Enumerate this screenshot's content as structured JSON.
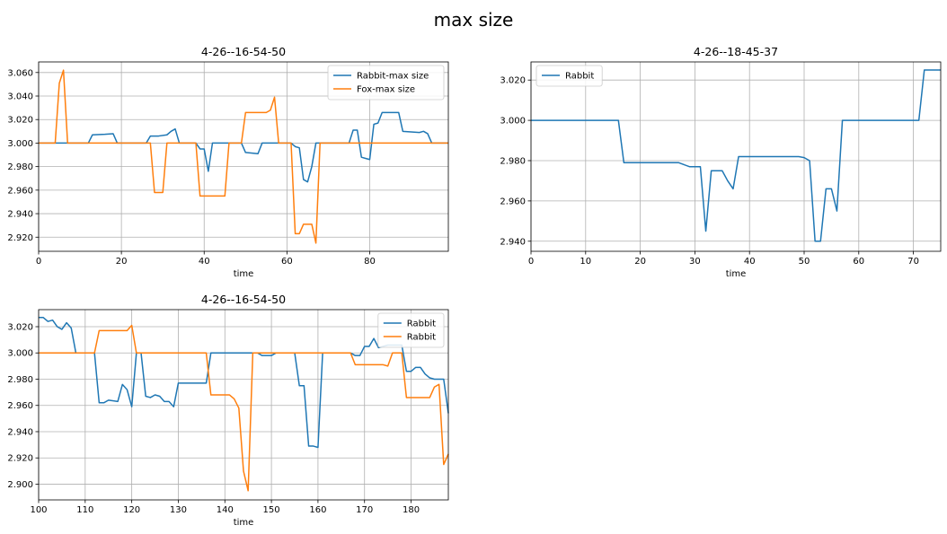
{
  "figure_title": "max size",
  "colors": {
    "blue": "#1f77b4",
    "orange": "#ff7f0e",
    "grid": "#b0b0b0"
  },
  "chart_data": [
    {
      "type": "line",
      "title": "4-26--16-54-50",
      "xlabel": "time",
      "ylabel": "",
      "xlim": [
        0,
        99
      ],
      "ylim": [
        2.908,
        3.069
      ],
      "xticks": [
        0,
        20,
        40,
        60,
        80
      ],
      "yticks": [
        2.92,
        2.94,
        2.96,
        2.98,
        3.0,
        3.02,
        3.04,
        3.06
      ],
      "ytick_labels": [
        "2.920",
        "2.940",
        "2.960",
        "2.980",
        "3.000",
        "3.020",
        "3.040",
        "3.060"
      ],
      "grid": true,
      "legend": "top-right",
      "series": [
        {
          "name": "Rabbit-max size",
          "color": "#1f77b4",
          "points": [
            [
              0,
              3.0
            ],
            [
              12,
              3.0
            ],
            [
              13,
              3.007
            ],
            [
              16,
              3.0075
            ],
            [
              18,
              3.008
            ],
            [
              19,
              3.0
            ],
            [
              26,
              3.0
            ],
            [
              27,
              3.006
            ],
            [
              29,
              3.006
            ],
            [
              31,
              3.007
            ],
            [
              32,
              3.01
            ],
            [
              33,
              3.012
            ],
            [
              34,
              3.0
            ],
            [
              38,
              3.0
            ],
            [
              39,
              2.995
            ],
            [
              40,
              2.995
            ],
            [
              41,
              2.976
            ],
            [
              42,
              3.0
            ],
            [
              46,
              3.0
            ],
            [
              47,
              3.0
            ],
            [
              48,
              3.0
            ],
            [
              49,
              3.0
            ],
            [
              50,
              2.992
            ],
            [
              53,
              2.991
            ],
            [
              54,
              3.0
            ],
            [
              58,
              3.0
            ],
            [
              61,
              3.0
            ],
            [
              62,
              2.997
            ],
            [
              63,
              2.996
            ],
            [
              64,
              2.969
            ],
            [
              65,
              2.967
            ],
            [
              66,
              2.98
            ],
            [
              67,
              3.0
            ],
            [
              75,
              3.0
            ],
            [
              76,
              3.011
            ],
            [
              77,
              3.011
            ],
            [
              78,
              2.988
            ],
            [
              79,
              2.987
            ],
            [
              80,
              2.986
            ],
            [
              81,
              3.016
            ],
            [
              82,
              3.017
            ],
            [
              83,
              3.026
            ],
            [
              87,
              3.026
            ],
            [
              88,
              3.01
            ],
            [
              92,
              3.009
            ],
            [
              93,
              3.01
            ],
            [
              94,
              3.008
            ],
            [
              95,
              3.0
            ],
            [
              99,
              3.0
            ]
          ]
        },
        {
          "name": "Fox-max size",
          "color": "#ff7f0e",
          "points": [
            [
              0,
              3.0
            ],
            [
              4,
              3.0
            ],
            [
              5,
              3.051
            ],
            [
              6,
              3.062
            ],
            [
              7,
              3.0
            ],
            [
              27,
              3.0
            ],
            [
              28,
              2.958
            ],
            [
              30,
              2.958
            ],
            [
              31,
              3.0
            ],
            [
              38,
              3.0
            ],
            [
              39,
              2.955
            ],
            [
              45,
              2.955
            ],
            [
              46,
              3.0
            ],
            [
              49,
              3.0
            ],
            [
              50,
              3.026
            ],
            [
              55,
              3.026
            ],
            [
              56,
              3.028
            ],
            [
              57,
              3.039
            ],
            [
              58,
              3.0
            ],
            [
              61,
              3.0
            ],
            [
              62,
              2.923
            ],
            [
              63,
              2.923
            ],
            [
              64,
              2.931
            ],
            [
              66,
              2.931
            ],
            [
              67,
              2.915
            ],
            [
              68,
              3.0
            ],
            [
              99,
              3.0
            ]
          ]
        }
      ]
    },
    {
      "type": "line",
      "title": "4-26--18-45-37",
      "xlabel": "time",
      "ylabel": "",
      "xlim": [
        0,
        75
      ],
      "ylim": [
        2.935,
        3.029
      ],
      "xticks": [
        0,
        10,
        20,
        30,
        40,
        50,
        60,
        70
      ],
      "yticks": [
        2.94,
        2.96,
        2.98,
        3.0,
        3.02
      ],
      "ytick_labels": [
        "2.940",
        "2.960",
        "2.980",
        "3.000",
        "3.020"
      ],
      "grid": true,
      "legend": "top-left",
      "series": [
        {
          "name": "Rabbit",
          "color": "#1f77b4",
          "points": [
            [
              0,
              3.0
            ],
            [
              16,
              3.0
            ],
            [
              17,
              2.979
            ],
            [
              27,
              2.979
            ],
            [
              28,
              2.978
            ],
            [
              29,
              2.977
            ],
            [
              31,
              2.977
            ],
            [
              32,
              2.945
            ],
            [
              33,
              2.975
            ],
            [
              35,
              2.975
            ],
            [
              36,
              2.97
            ],
            [
              37,
              2.966
            ],
            [
              38,
              2.982
            ],
            [
              49,
              2.982
            ],
            [
              50,
              2.9815
            ],
            [
              51,
              2.98
            ],
            [
              52,
              2.94
            ],
            [
              53,
              2.94
            ],
            [
              54,
              2.966
            ],
            [
              55,
              2.966
            ],
            [
              56,
              2.955
            ],
            [
              57,
              3.0
            ],
            [
              71,
              3.0
            ],
            [
              72,
              3.025
            ],
            [
              75,
              3.025
            ]
          ]
        }
      ]
    },
    {
      "type": "line",
      "title": "4-26--16-54-50",
      "xlabel": "time",
      "ylabel": "",
      "xlim": [
        100,
        188
      ],
      "ylim": [
        2.888,
        3.033
      ],
      "xticks": [
        100,
        110,
        120,
        130,
        140,
        150,
        160,
        170,
        180
      ],
      "yticks": [
        2.9,
        2.92,
        2.94,
        2.96,
        2.98,
        3.0,
        3.02
      ],
      "ytick_labels": [
        "2.900",
        "2.920",
        "2.940",
        "2.960",
        "2.980",
        "3.000",
        "3.020"
      ],
      "grid": true,
      "legend": "top-right",
      "series": [
        {
          "name": "Rabbit",
          "color": "#1f77b4",
          "points": [
            [
              100,
              3.027
            ],
            [
              101,
              3.027
            ],
            [
              102,
              3.024
            ],
            [
              103,
              3.025
            ],
            [
              104,
              3.02
            ],
            [
              105,
              3.018
            ],
            [
              106,
              3.023
            ],
            [
              107,
              3.019
            ],
            [
              108,
              3.0
            ],
            [
              112,
              3.0
            ],
            [
              113,
              2.962
            ],
            [
              114,
              2.962
            ],
            [
              115,
              2.964
            ],
            [
              117,
              2.963
            ],
            [
              118,
              2.976
            ],
            [
              119,
              2.972
            ],
            [
              120,
              2.959
            ],
            [
              121,
              3.0
            ],
            [
              122,
              3.0
            ],
            [
              123,
              2.967
            ],
            [
              124,
              2.966
            ],
            [
              125,
              2.968
            ],
            [
              126,
              2.967
            ],
            [
              127,
              2.963
            ],
            [
              128,
              2.963
            ],
            [
              129,
              2.959
            ],
            [
              130,
              2.977
            ],
            [
              136,
              2.977
            ],
            [
              137,
              3.0
            ],
            [
              147,
              3.0
            ],
            [
              148,
              2.998
            ],
            [
              150,
              2.998
            ],
            [
              151,
              3.0
            ],
            [
              155,
              3.0
            ],
            [
              156,
              2.975
            ],
            [
              157,
              2.975
            ],
            [
              158,
              2.929
            ],
            [
              159,
              2.929
            ],
            [
              160,
              2.928
            ],
            [
              161,
              3.0
            ],
            [
              167,
              3.0
            ],
            [
              168,
              2.998
            ],
            [
              169,
              2.998
            ],
            [
              170,
              3.005
            ],
            [
              171,
              3.005
            ],
            [
              172,
              3.011
            ],
            [
              173,
              3.004
            ],
            [
              175,
              3.006
            ],
            [
              177,
              3.006
            ],
            [
              178,
              3.006
            ],
            [
              179,
              2.986
            ],
            [
              180,
              2.986
            ],
            [
              181,
              2.989
            ],
            [
              182,
              2.989
            ],
            [
              183,
              2.984
            ],
            [
              184,
              2.981
            ],
            [
              185,
              2.98
            ],
            [
              187,
              2.98
            ],
            [
              188,
              2.954
            ]
          ]
        },
        {
          "name": "Rabbit",
          "color": "#ff7f0e",
          "points": [
            [
              100,
              3.0
            ],
            [
              112,
              3.0
            ],
            [
              113,
              3.017
            ],
            [
              119,
              3.017
            ],
            [
              120,
              3.021
            ],
            [
              121,
              3.0
            ],
            [
              136,
              3.0
            ],
            [
              137,
              2.968
            ],
            [
              141,
              2.968
            ],
            [
              142,
              2.965
            ],
            [
              143,
              2.958
            ],
            [
              144,
              2.91
            ],
            [
              145,
              2.895
            ],
            [
              146,
              3.0
            ],
            [
              147,
              3.0
            ],
            [
              150,
              3.0
            ],
            [
              151,
              3.0
            ],
            [
              166,
              3.0
            ],
            [
              167,
              3.0
            ],
            [
              168,
              2.991
            ],
            [
              174,
              2.991
            ],
            [
              175,
              2.99
            ],
            [
              176,
              3.0
            ],
            [
              178,
              3.0
            ],
            [
              179,
              2.966
            ],
            [
              184,
              2.966
            ],
            [
              185,
              2.974
            ],
            [
              186,
              2.976
            ],
            [
              187,
              2.915
            ],
            [
              188,
              2.923
            ]
          ]
        }
      ]
    }
  ]
}
